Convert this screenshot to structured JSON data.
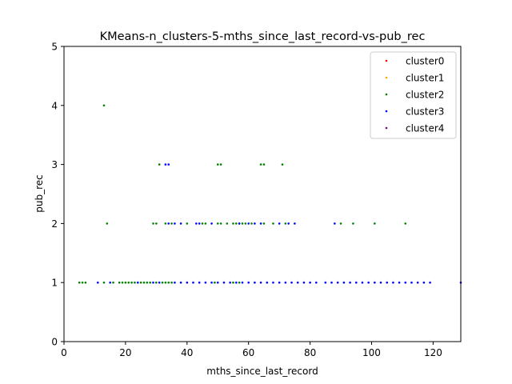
{
  "chart_data": {
    "type": "scatter",
    "title": "KMeans-n_clusters-5-mths_since_last_record-vs-pub_rec",
    "xlabel": "mths_since_last_record",
    "ylabel": "pub_rec",
    "xlim": [
      0,
      129
    ],
    "ylim": [
      0,
      5
    ],
    "xticks": [
      "0",
      "20",
      "40",
      "60",
      "80",
      "100",
      "120"
    ],
    "yticks": [
      "0",
      "1",
      "2",
      "3",
      "4",
      "5"
    ],
    "grid": false,
    "legend_position": "top-right",
    "series": [
      {
        "name": "cluster0",
        "color": "#ff0000",
        "points": []
      },
      {
        "name": "cluster1",
        "color": "#ffa500",
        "points": []
      },
      {
        "name": "cluster2",
        "color": "#008000",
        "points": [
          [
            13,
            4
          ],
          [
            31,
            3
          ],
          [
            50,
            3
          ],
          [
            51,
            3
          ],
          [
            64,
            3
          ],
          [
            65,
            3
          ],
          [
            71,
            3
          ],
          [
            14,
            2
          ],
          [
            29,
            2
          ],
          [
            30,
            2
          ],
          [
            33,
            2
          ],
          [
            35,
            2
          ],
          [
            40,
            2
          ],
          [
            45,
            2
          ],
          [
            46,
            2
          ],
          [
            50,
            2
          ],
          [
            51,
            2
          ],
          [
            53,
            2
          ],
          [
            55,
            2
          ],
          [
            56,
            2
          ],
          [
            57,
            2
          ],
          [
            58,
            2
          ],
          [
            59,
            2
          ],
          [
            61,
            2
          ],
          [
            65,
            2
          ],
          [
            68,
            2
          ],
          [
            72,
            2
          ],
          [
            90,
            2
          ],
          [
            94,
            2
          ],
          [
            101,
            2
          ],
          [
            111,
            2
          ],
          [
            5,
            1
          ],
          [
            6,
            1
          ],
          [
            7,
            1
          ],
          [
            13,
            1
          ],
          [
            16,
            1
          ],
          [
            18,
            1
          ],
          [
            19,
            1
          ],
          [
            20,
            1
          ],
          [
            21,
            1
          ],
          [
            22,
            1
          ],
          [
            23,
            1
          ],
          [
            25,
            1
          ],
          [
            26,
            1
          ],
          [
            27,
            1
          ],
          [
            28,
            1
          ],
          [
            30,
            1
          ],
          [
            32,
            1
          ],
          [
            33,
            1
          ],
          [
            34,
            1
          ],
          [
            35,
            1
          ],
          [
            49,
            1
          ],
          [
            55,
            1
          ],
          [
            57,
            1
          ]
        ]
      },
      {
        "name": "cluster3",
        "color": "#0000ff",
        "points": [
          [
            33,
            3
          ],
          [
            34,
            3
          ],
          [
            34,
            2
          ],
          [
            36,
            2
          ],
          [
            38,
            2
          ],
          [
            43,
            2
          ],
          [
            44,
            2
          ],
          [
            48,
            2
          ],
          [
            57,
            2
          ],
          [
            60,
            2
          ],
          [
            62,
            2
          ],
          [
            64,
            2
          ],
          [
            70,
            2
          ],
          [
            73,
            2
          ],
          [
            75,
            2
          ],
          [
            88,
            2
          ],
          [
            11,
            1
          ],
          [
            15,
            1
          ],
          [
            24,
            1
          ],
          [
            29,
            1
          ],
          [
            31,
            1
          ],
          [
            36,
            1
          ],
          [
            38,
            1
          ],
          [
            40,
            1
          ],
          [
            42,
            1
          ],
          [
            44,
            1
          ],
          [
            46,
            1
          ],
          [
            48,
            1
          ],
          [
            50,
            1
          ],
          [
            52,
            1
          ],
          [
            54,
            1
          ],
          [
            56,
            1
          ],
          [
            58,
            1
          ],
          [
            60,
            1
          ],
          [
            62,
            1
          ],
          [
            64,
            1
          ],
          [
            66,
            1
          ],
          [
            68,
            1
          ],
          [
            70,
            1
          ],
          [
            72,
            1
          ],
          [
            74,
            1
          ],
          [
            76,
            1
          ],
          [
            78,
            1
          ],
          [
            80,
            1
          ],
          [
            82,
            1
          ],
          [
            85,
            1
          ],
          [
            87,
            1
          ],
          [
            89,
            1
          ],
          [
            91,
            1
          ],
          [
            93,
            1
          ],
          [
            95,
            1
          ],
          [
            97,
            1
          ],
          [
            99,
            1
          ],
          [
            101,
            1
          ],
          [
            103,
            1
          ],
          [
            105,
            1
          ],
          [
            107,
            1
          ],
          [
            109,
            1
          ],
          [
            111,
            1
          ],
          [
            113,
            1
          ],
          [
            115,
            1
          ],
          [
            117,
            1
          ],
          [
            119,
            1
          ],
          [
            129,
            1
          ]
        ]
      },
      {
        "name": "cluster4",
        "color": "#800080",
        "points": []
      }
    ]
  }
}
